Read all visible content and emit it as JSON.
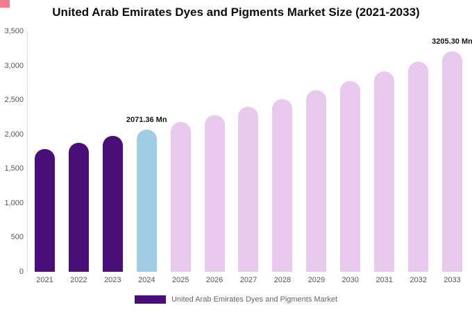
{
  "page": {
    "title": "United Arab Emirates Dyes and Pigments Market Size (2021-2033)"
  },
  "legend": {
    "label": "United Arab Emirates Dyes and Pigments Market",
    "swatch_color": "#4a0e78"
  },
  "chart_data": {
    "type": "bar",
    "title": "United Arab Emirates Dyes and Pigments Market Size (2021-2033)",
    "unit": "Mn",
    "categories": [
      "2021",
      "2022",
      "2023",
      "2024",
      "2025",
      "2026",
      "2027",
      "2028",
      "2029",
      "2030",
      "2031",
      "2032",
      "2033"
    ],
    "values": [
      1790,
      1879,
      1973,
      2071.36,
      2175,
      2283,
      2397,
      2516,
      2641,
      2772,
      2910,
      3055,
      3205.3
    ],
    "colors": [
      "#4a0e78",
      "#4a0e78",
      "#4a0e78",
      "#9fcde4",
      "#eac9ee",
      "#eac9ee",
      "#eac9ee",
      "#eac9ee",
      "#eac9ee",
      "#eac9ee",
      "#eac9ee",
      "#eac9ee",
      "#eac9ee"
    ],
    "annotations": [
      {
        "category": "2024",
        "text": "2071.36 Mn"
      },
      {
        "category": "2033",
        "text": "3205.30 Mn"
      }
    ],
    "ylim": [
      0,
      3500
    ],
    "yticks": [
      0,
      500,
      1000,
      1500,
      2000,
      2500,
      3000,
      3500
    ],
    "ytick_labels": [
      "0",
      "500",
      "1,000",
      "1,500",
      "2,000",
      "2,500",
      "3,000",
      "3,500"
    ],
    "grid": false,
    "legend_position": "bottom"
  }
}
